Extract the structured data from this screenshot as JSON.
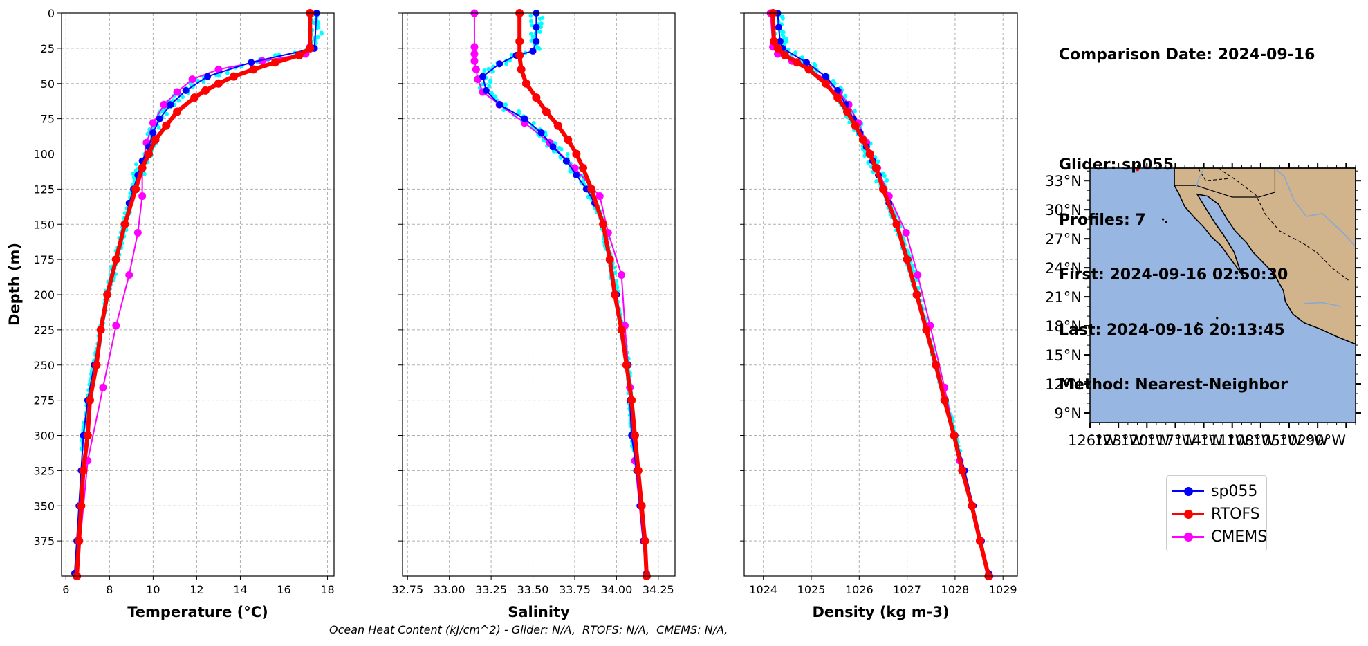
{
  "info": {
    "comparison_date": "Comparison Date: 2024-09-16",
    "glider": "Glider: sp055",
    "profiles": "Profiles: 7",
    "first": "First: 2024-09-16 02:50:30",
    "last": "Last: 2024-09-16 20:13:45",
    "method": "Method: Nearest-Neighbor"
  },
  "legend": [
    {
      "label": "sp055",
      "color": "#0000ff"
    },
    {
      "label": "RTOFS",
      "color": "#ff0000"
    },
    {
      "label": "CMEMS",
      "color": "#ff00ff"
    }
  ],
  "caption": "Ocean Heat Content (kJ/cm^2) - Glider: N/A,  RTOFS: N/A,  CMEMS: N/A,",
  "colors": {
    "glider": "#0000ff",
    "rtofs": "#ff0000",
    "cmems": "#ff00ff",
    "raw": "#00ffff",
    "ocean": "#97b6e1",
    "land": "#d2b48c"
  },
  "map": {
    "lat_ticks": [
      "33°N",
      "30°N",
      "27°N",
      "24°N",
      "21°N",
      "18°N",
      "15°N",
      "12°N",
      "9°N"
    ],
    "lon_ticks": [
      "126°W",
      "123°W",
      "120°W",
      "117°W",
      "114°W",
      "111°W",
      "108°W",
      "105°W",
      "102°W",
      "99°W"
    ],
    "lat_range": [
      8,
      34.3
    ],
    "lon_range": [
      -126,
      -98
    ]
  },
  "chart_data": [
    {
      "type": "line",
      "xlabel": "Temperature (°C)",
      "ylabel": "Depth (m)",
      "xlim": [
        5.8,
        18.3
      ],
      "ylim": [
        400,
        0
      ],
      "xticks": [
        6,
        8,
        10,
        12,
        14,
        16,
        18
      ],
      "yticks": [
        0,
        25,
        50,
        75,
        100,
        125,
        150,
        175,
        200,
        225,
        250,
        275,
        300,
        325,
        350,
        375
      ],
      "grid": true,
      "series": [
        {
          "name": "sp055",
          "depth": [
            0,
            25,
            35,
            45,
            55,
            65,
            75,
            85,
            95,
            105,
            115,
            125,
            135,
            150,
            175,
            200,
            225,
            250,
            275,
            300,
            325,
            350,
            375,
            398
          ],
          "values": [
            17.5,
            17.4,
            14.5,
            12.5,
            11.5,
            10.8,
            10.3,
            10.0,
            9.8,
            9.5,
            9.3,
            9.1,
            8.9,
            8.7,
            8.3,
            7.9,
            7.6,
            7.3,
            7.0,
            6.8,
            6.7,
            6.6,
            6.5,
            6.4
          ]
        },
        {
          "name": "RTOFS",
          "depth": [
            0,
            25,
            30,
            35,
            40,
            45,
            50,
            55,
            60,
            70,
            80,
            90,
            100,
            110,
            125,
            150,
            175,
            200,
            225,
            250,
            275,
            300,
            325,
            350,
            375,
            400
          ],
          "values": [
            17.2,
            17.2,
            16.7,
            15.6,
            14.6,
            13.7,
            13.0,
            12.4,
            11.9,
            11.1,
            10.6,
            10.1,
            9.8,
            9.5,
            9.2,
            8.7,
            8.3,
            7.9,
            7.6,
            7.4,
            7.1,
            7.0,
            6.8,
            6.7,
            6.6,
            6.5
          ]
        },
        {
          "name": "CMEMS",
          "depth": [
            0,
            24,
            29,
            34,
            40,
            47,
            56,
            65,
            78,
            92,
            110,
            130,
            156,
            186,
            222,
            266,
            318,
            400
          ],
          "values": [
            17.2,
            17.2,
            17.0,
            15.0,
            13.0,
            11.8,
            11.1,
            10.5,
            10.0,
            9.7,
            9.5,
            9.5,
            9.3,
            8.9,
            8.3,
            7.7,
            7.0,
            6.5
          ]
        }
      ]
    },
    {
      "type": "line",
      "xlabel": "Salinity",
      "xlim": [
        32.72,
        34.35
      ],
      "ylim": [
        400,
        0
      ],
      "xticks": [
        32.75,
        33.0,
        33.25,
        33.5,
        33.75,
        34.0,
        34.25
      ],
      "xticklabels": [
        "32.75",
        "33.00",
        "33.25",
        "33.50",
        "33.75",
        "34.00",
        "34.25"
      ],
      "grid": true,
      "series": [
        {
          "name": "sp055",
          "depth": [
            0,
            10,
            20,
            27,
            30,
            36,
            45,
            55,
            65,
            75,
            85,
            95,
            105,
            115,
            125,
            135,
            150,
            175,
            200,
            225,
            250,
            275,
            300,
            325,
            350,
            375,
            398
          ],
          "values": [
            33.52,
            33.52,
            33.52,
            33.5,
            33.4,
            33.3,
            33.2,
            33.22,
            33.3,
            33.45,
            33.55,
            33.62,
            33.7,
            33.76,
            33.82,
            33.87,
            33.92,
            33.96,
            34.0,
            34.03,
            34.07,
            34.08,
            34.09,
            34.12,
            34.14,
            34.16,
            34.18
          ]
        },
        {
          "name": "RTOFS",
          "depth": [
            0,
            20,
            30,
            40,
            50,
            60,
            70,
            80,
            90,
            100,
            110,
            125,
            150,
            175,
            200,
            225,
            250,
            275,
            300,
            325,
            350,
            375,
            400
          ],
          "values": [
            33.42,
            33.42,
            33.42,
            33.43,
            33.46,
            33.52,
            33.58,
            33.65,
            33.71,
            33.76,
            33.8,
            33.85,
            33.92,
            33.96,
            33.99,
            34.03,
            34.06,
            34.09,
            34.11,
            34.13,
            34.15,
            34.17,
            34.18
          ]
        },
        {
          "name": "CMEMS",
          "depth": [
            0,
            24,
            29,
            34,
            40,
            47,
            56,
            65,
            78,
            92,
            110,
            130,
            156,
            186,
            222,
            266,
            318,
            400
          ],
          "values": [
            33.15,
            33.15,
            33.15,
            33.15,
            33.16,
            33.17,
            33.2,
            33.3,
            33.45,
            33.6,
            33.75,
            33.9,
            33.95,
            34.03,
            34.05,
            34.08,
            34.11,
            34.18
          ]
        }
      ]
    },
    {
      "type": "line",
      "xlabel": "Density (kg m-3)",
      "xlim": [
        1023.6,
        1029.3
      ],
      "ylim": [
        400,
        0
      ],
      "xticks": [
        1024,
        1025,
        1026,
        1027,
        1028,
        1029
      ],
      "grid": true,
      "series": [
        {
          "name": "sp055",
          "depth": [
            0,
            10,
            20,
            25,
            35,
            45,
            55,
            65,
            75,
            85,
            95,
            105,
            115,
            125,
            135,
            150,
            175,
            200,
            225,
            250,
            275,
            300,
            325,
            350,
            375,
            398
          ],
          "values": [
            1024.3,
            1024.32,
            1024.35,
            1024.4,
            1024.9,
            1025.3,
            1025.55,
            1025.72,
            1025.88,
            1026.02,
            1026.15,
            1026.28,
            1026.4,
            1026.52,
            1026.62,
            1026.78,
            1027.02,
            1027.22,
            1027.4,
            1027.6,
            1027.8,
            1028.0,
            1028.2,
            1028.38,
            1028.55,
            1028.7
          ]
        },
        {
          "name": "RTOFS",
          "depth": [
            0,
            20,
            25,
            30,
            35,
            40,
            50,
            60,
            70,
            80,
            90,
            100,
            110,
            125,
            150,
            175,
            200,
            225,
            250,
            275,
            300,
            325,
            350,
            375,
            400
          ],
          "values": [
            1024.2,
            1024.22,
            1024.3,
            1024.45,
            1024.7,
            1024.95,
            1025.3,
            1025.55,
            1025.75,
            1025.92,
            1026.08,
            1026.22,
            1026.35,
            1026.5,
            1026.78,
            1027.0,
            1027.2,
            1027.4,
            1027.6,
            1027.78,
            1027.98,
            1028.15,
            1028.35,
            1028.52,
            1028.7
          ]
        },
        {
          "name": "CMEMS",
          "depth": [
            0,
            24,
            29,
            34,
            40,
            47,
            56,
            65,
            78,
            92,
            110,
            130,
            156,
            186,
            222,
            266,
            318,
            400
          ],
          "values": [
            1024.15,
            1024.2,
            1024.3,
            1024.6,
            1024.95,
            1025.3,
            1025.58,
            1025.78,
            1025.98,
            1026.15,
            1026.38,
            1026.62,
            1026.98,
            1027.22,
            1027.48,
            1027.78,
            1028.1,
            1028.72
          ]
        }
      ]
    }
  ]
}
